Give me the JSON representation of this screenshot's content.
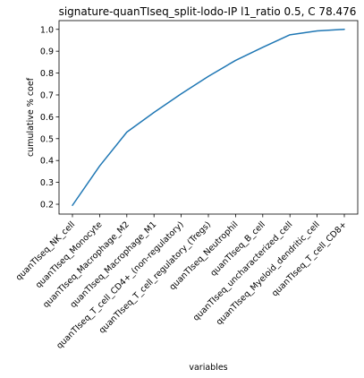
{
  "chart_data": {
    "type": "line",
    "title": "signature-quanTIseq_split-lodo-IP l1_ratio 0.5, C 78.476",
    "xlabel": "variables",
    "ylabel": "cumulative % coef",
    "categories": [
      "quanTIseq_NK_cell",
      "quanTIseq_Monocyte",
      "quanTIseq_Macrophage_M2",
      "quanTIseq_Macrophage_M1",
      "quanTIseq_T_cell_CD4+_(non-regulatory)",
      "quanTIseq_T_cell_regulatory_(Tregs)",
      "quanTIseq_Neutrophil",
      "quanTIseq_B_cell",
      "quanTIseq_uncharacterized_cell",
      "quanTIseq_Myeloid_dendritic_cell",
      "quanTIseq_T_cell_CD8+"
    ],
    "series": [
      {
        "values": [
          0.195,
          0.375,
          0.53,
          0.62,
          0.705,
          0.785,
          0.858,
          0.918,
          0.975,
          0.993,
          1.0
        ]
      }
    ],
    "y_ticks": [
      "0.2",
      "0.3",
      "0.4",
      "0.5",
      "0.6",
      "0.7",
      "0.8",
      "0.9",
      "1.0"
    ],
    "ylim": [
      0.155,
      1.04
    ],
    "grid": false,
    "line_color": "#1f77b4"
  }
}
